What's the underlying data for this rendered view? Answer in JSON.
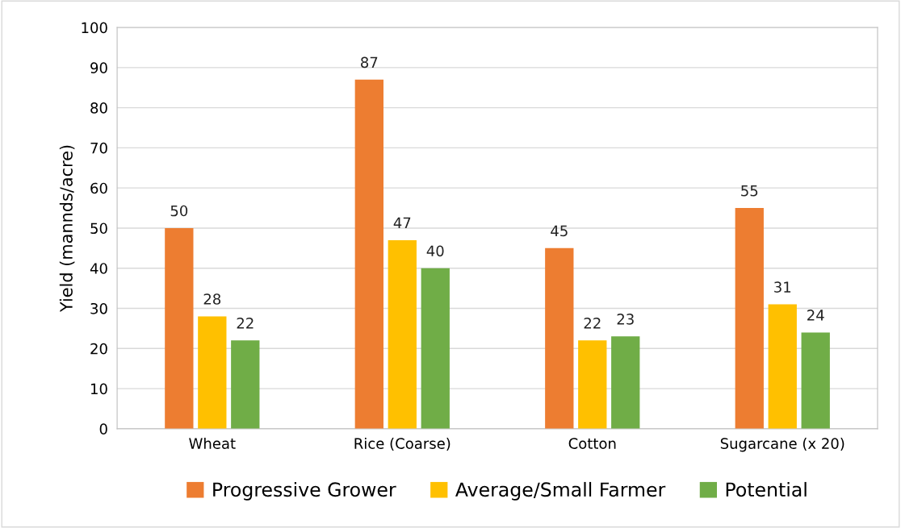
{
  "chart_data": {
    "type": "bar",
    "ylabel": "Yield (mannds/acre)",
    "categories": [
      "Wheat",
      "Rice (Coarse)",
      "Cotton",
      "Sugarcane (x 20)"
    ],
    "series": [
      {
        "name": "Progressive Grower",
        "color": "#ed7d31",
        "values": [
          50,
          87,
          45,
          55
        ]
      },
      {
        "name": "Average/Small Farmer",
        "color": "#ffc000",
        "values": [
          28,
          47,
          22,
          31
        ]
      },
      {
        "name": "Potential",
        "color": "#70ad47",
        "values": [
          22,
          40,
          23,
          24
        ]
      }
    ],
    "ylim": [
      0,
      100
    ],
    "yticks": [
      0,
      10,
      20,
      30,
      40,
      50,
      60,
      70,
      80,
      90,
      100
    ],
    "grid": "y",
    "legend": "bottom",
    "data_labels": true
  }
}
